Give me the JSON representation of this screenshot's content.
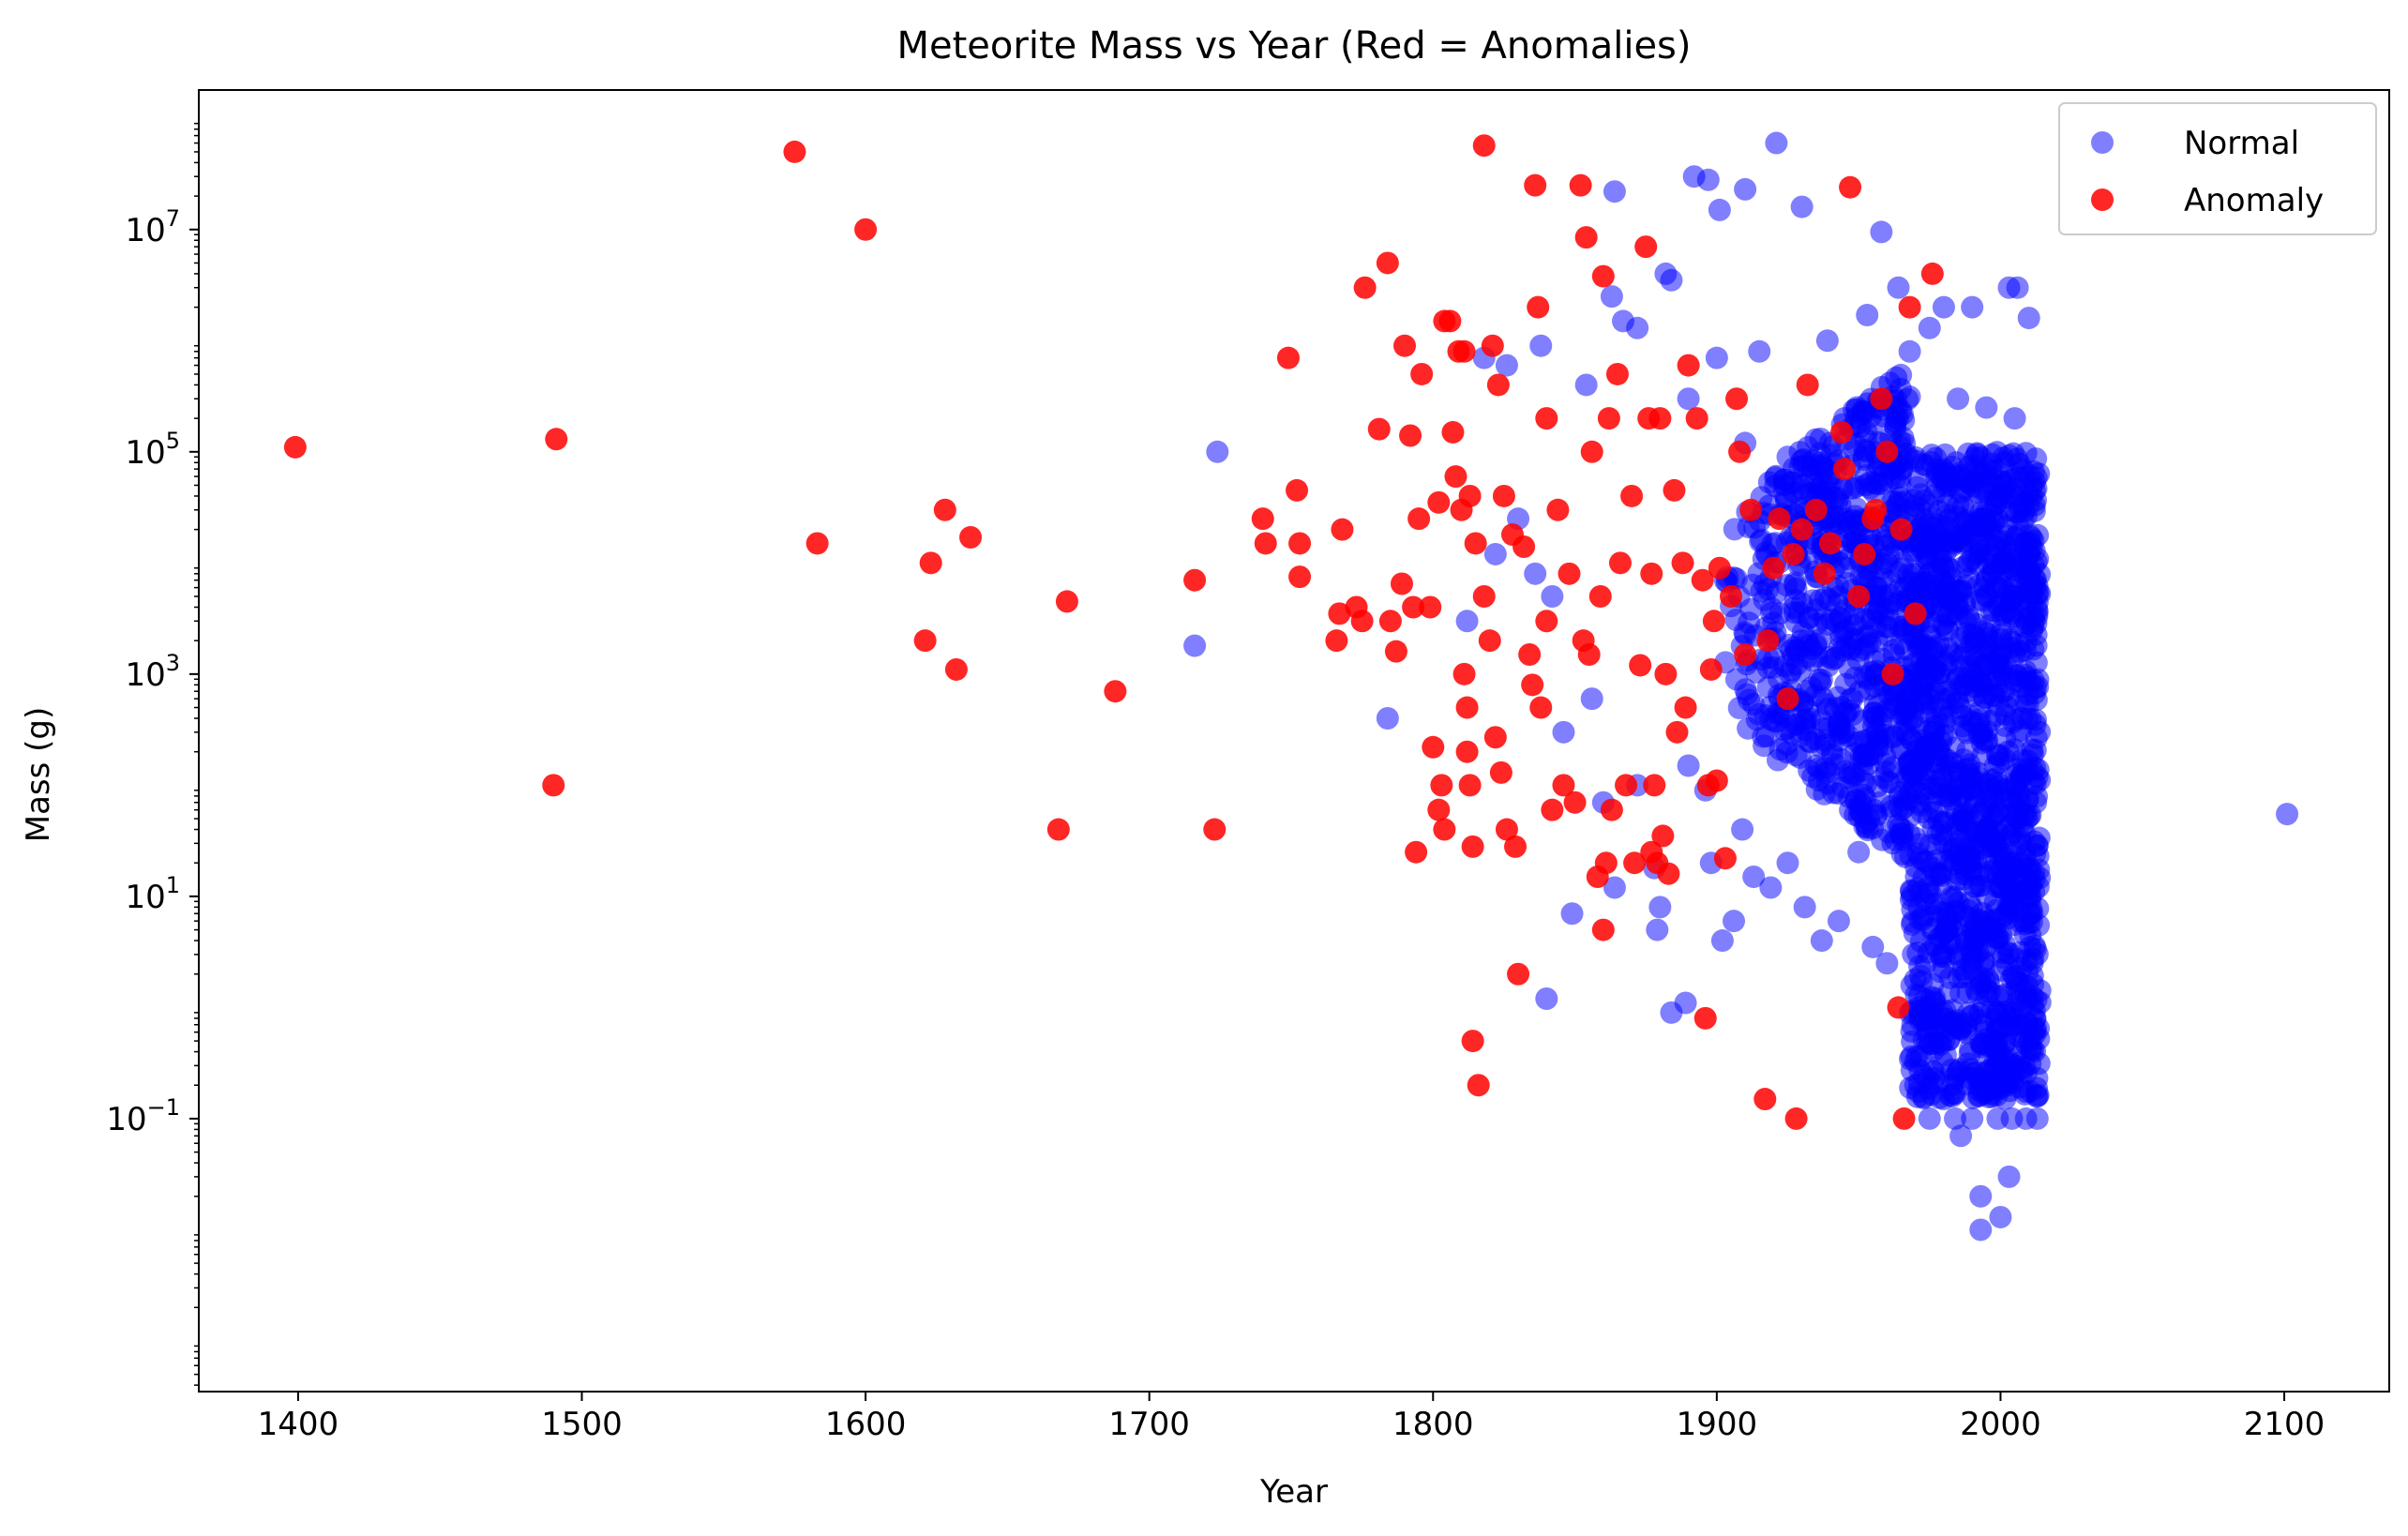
{
  "chart_data": {
    "type": "scatter",
    "title": "Meteorite Mass vs Year (Red = Anomalies)",
    "xlabel": "Year",
    "ylabel": "Mass (g)",
    "xlim": [
      1365,
      2137
    ],
    "ylim": [
      0.00035,
      180000000
    ],
    "yscale": "log",
    "x_ticks": [
      1400,
      1500,
      1600,
      1700,
      1800,
      1900,
      2000,
      2100
    ],
    "y_ticks": [
      {
        "value": 0.1,
        "base": "10",
        "exp": "−1"
      },
      {
        "value": 10,
        "base": "10",
        "exp": "1"
      },
      {
        "value": 1000,
        "base": "10",
        "exp": "3"
      },
      {
        "value": 100000,
        "base": "10",
        "exp": "5"
      },
      {
        "value": 10000000,
        "base": "10",
        "exp": "7"
      }
    ],
    "grid": false,
    "legend_position": "top-right",
    "series": [
      {
        "name": "Normal",
        "color": "#0000ff",
        "opacity": 0.5,
        "dense_region": {
          "x": [
            1968,
            2014
          ],
          "y": [
            0.15,
            100000
          ]
        },
        "dense_region_mid": {
          "x": [
            1900,
            1968
          ],
          "y": [
            10,
            300000
          ]
        },
        "points": [
          [
            1716,
            1800
          ],
          [
            1724,
            100000
          ],
          [
            1784,
            400
          ],
          [
            1840,
            1.2
          ],
          [
            1849,
            7
          ],
          [
            1860,
            70
          ],
          [
            1863,
            2500000
          ],
          [
            1864,
            22000000
          ],
          [
            1867,
            1500000
          ],
          [
            1872,
            1300000
          ],
          [
            1878,
            18
          ],
          [
            1879,
            5
          ],
          [
            1882,
            4000000
          ],
          [
            1884,
            3500000
          ],
          [
            1884,
            0.9
          ],
          [
            1889,
            1.1
          ],
          [
            1892,
            30000000
          ],
          [
            1897,
            28000000
          ],
          [
            1901,
            15000000
          ],
          [
            1910,
            23000000
          ],
          [
            1921,
            60000000
          ],
          [
            1930,
            16000000
          ],
          [
            1958,
            9500000
          ],
          [
            1964,
            3000000
          ],
          [
            1980,
            2000000
          ],
          [
            1986,
            0.07
          ],
          [
            1990,
            2000000
          ],
          [
            1993,
            0.02
          ],
          [
            1993,
            0.01
          ],
          [
            2000,
            0.013
          ],
          [
            2003,
            3000000
          ],
          [
            2006,
            3000000
          ],
          [
            2003,
            0.03
          ],
          [
            2010,
            1600000
          ],
          [
            2101,
            55
          ],
          [
            1818,
            700000
          ],
          [
            1826,
            600000
          ],
          [
            1838,
            900000
          ],
          [
            1854,
            400000
          ],
          [
            1900,
            700000
          ],
          [
            1915,
            800000
          ],
          [
            1939,
            1000000
          ],
          [
            1953,
            1700000
          ],
          [
            1968,
            800000
          ],
          [
            1975,
            1300000
          ],
          [
            1898,
            20
          ],
          [
            1902,
            4
          ],
          [
            1906,
            6
          ],
          [
            1913,
            15
          ],
          [
            1919,
            12
          ],
          [
            1925,
            20
          ],
          [
            1931,
            8
          ],
          [
            1937,
            4
          ],
          [
            1943,
            6
          ],
          [
            1950,
            25
          ],
          [
            1955,
            3.5
          ],
          [
            1960,
            2.5
          ],
          [
            1909,
            40
          ],
          [
            1935,
            150
          ],
          [
            1947,
            60
          ],
          [
            1962,
            30
          ],
          [
            1890,
            150
          ],
          [
            1896,
            90
          ],
          [
            1864,
            12
          ],
          [
            1872,
            100
          ],
          [
            1880,
            8
          ],
          [
            1856,
            600
          ],
          [
            1846,
            300
          ],
          [
            1830,
            25000
          ],
          [
            1836,
            8000
          ],
          [
            1842,
            5000
          ],
          [
            1822,
            12000
          ],
          [
            1812,
            3000
          ],
          [
            1890,
            300000
          ],
          [
            1910,
            120000
          ],
          [
            1925,
            90000
          ],
          [
            1945,
            200000
          ],
          [
            1960,
            100000
          ],
          [
            1985,
            300000
          ],
          [
            1995,
            250000
          ],
          [
            2005,
            200000
          ],
          [
            1975,
            0.1
          ],
          [
            1984,
            0.1
          ],
          [
            1990,
            0.1
          ],
          [
            1999,
            0.1
          ],
          [
            2004,
            0.1
          ],
          [
            2009,
            0.1
          ],
          [
            2013,
            0.1
          ],
          [
            1970,
            0.2
          ],
          [
            1980,
            0.15
          ]
        ]
      },
      {
        "name": "Anomaly",
        "color": "#ff0000",
        "opacity": 0.85,
        "points": [
          [
            1399,
            110000
          ],
          [
            1490,
            100
          ],
          [
            1491,
            130000
          ],
          [
            1575,
            50000000
          ],
          [
            1583,
            15000
          ],
          [
            1600,
            10000000
          ],
          [
            1621,
            2000
          ],
          [
            1623,
            10000
          ],
          [
            1628,
            30000
          ],
          [
            1632,
            1100
          ],
          [
            1637,
            17000
          ],
          [
            1668,
            40
          ],
          [
            1671,
            4500
          ],
          [
            1688,
            700
          ],
          [
            1716,
            7000
          ],
          [
            1723,
            40
          ],
          [
            1740,
            25000
          ],
          [
            1741,
            15000
          ],
          [
            1749,
            700000
          ],
          [
            1752,
            45000
          ],
          [
            1753,
            15000
          ],
          [
            1753,
            7500
          ],
          [
            1766,
            2000
          ],
          [
            1767,
            3500
          ],
          [
            1768,
            20000
          ],
          [
            1773,
            4000
          ],
          [
            1775,
            3000
          ],
          [
            1776,
            3000000
          ],
          [
            1781,
            160000
          ],
          [
            1784,
            5000000
          ],
          [
            1785,
            3000
          ],
          [
            1787,
            1600
          ],
          [
            1789,
            6500
          ],
          [
            1790,
            900000
          ],
          [
            1792,
            140000
          ],
          [
            1793,
            4000
          ],
          [
            1794,
            25
          ],
          [
            1795,
            25000
          ],
          [
            1796,
            500000
          ],
          [
            1799,
            4000
          ],
          [
            1800,
            220
          ],
          [
            1802,
            35000
          ],
          [
            1802,
            60
          ],
          [
            1803,
            100
          ],
          [
            1804,
            40
          ],
          [
            1804,
            1500000
          ],
          [
            1806,
            1500000
          ],
          [
            1807,
            150000
          ],
          [
            1808,
            60000
          ],
          [
            1809,
            800000
          ],
          [
            1810,
            30000
          ],
          [
            1811,
            800000
          ],
          [
            1811,
            1000
          ],
          [
            1812,
            500
          ],
          [
            1812,
            200
          ],
          [
            1813,
            100
          ],
          [
            1813,
            40000
          ],
          [
            1814,
            0.5
          ],
          [
            1814,
            28
          ],
          [
            1815,
            15000
          ],
          [
            1816,
            0.2
          ],
          [
            1818,
            57000000
          ],
          [
            1818,
            5000
          ],
          [
            1820,
            2000
          ],
          [
            1821,
            900000
          ],
          [
            1822,
            270
          ],
          [
            1823,
            400000
          ],
          [
            1824,
            130
          ],
          [
            1825,
            40000
          ],
          [
            1826,
            40
          ],
          [
            1828,
            18000
          ],
          [
            1829,
            28
          ],
          [
            1830,
            2
          ],
          [
            1832,
            14000
          ],
          [
            1834,
            1500
          ],
          [
            1835,
            800
          ],
          [
            1836,
            25000000
          ],
          [
            1837,
            2000000
          ],
          [
            1838,
            500
          ],
          [
            1840,
            200000
          ],
          [
            1840,
            3000
          ],
          [
            1842,
            60
          ],
          [
            1844,
            30000
          ],
          [
            1846,
            100
          ],
          [
            1848,
            8000
          ],
          [
            1850,
            70
          ],
          [
            1852,
            25000000
          ],
          [
            1853,
            2000
          ],
          [
            1854,
            8500000
          ],
          [
            1855,
            1500
          ],
          [
            1856,
            100000
          ],
          [
            1858,
            15
          ],
          [
            1859,
            5000
          ],
          [
            1860,
            5
          ],
          [
            1860,
            3800000
          ],
          [
            1861,
            20
          ],
          [
            1862,
            200000
          ],
          [
            1863,
            60
          ],
          [
            1865,
            500000
          ],
          [
            1866,
            10000
          ],
          [
            1868,
            100
          ],
          [
            1870,
            40000
          ],
          [
            1871,
            20
          ],
          [
            1873,
            1200
          ],
          [
            1875,
            7000000
          ],
          [
            1876,
            200000
          ],
          [
            1877,
            25
          ],
          [
            1877,
            8000
          ],
          [
            1878,
            100
          ],
          [
            1879,
            20
          ],
          [
            1880,
            200000
          ],
          [
            1881,
            35
          ],
          [
            1882,
            1000
          ],
          [
            1883,
            16
          ],
          [
            1885,
            45000
          ],
          [
            1886,
            300
          ],
          [
            1888,
            10000
          ],
          [
            1889,
            500
          ],
          [
            1890,
            600000
          ],
          [
            1893,
            200000
          ],
          [
            1895,
            7000
          ],
          [
            1896,
            0.8
          ],
          [
            1897,
            100
          ],
          [
            1898,
            1100
          ],
          [
            1899,
            3000
          ],
          [
            1900,
            110
          ],
          [
            1901,
            9000
          ],
          [
            1903,
            22
          ],
          [
            1905,
            5000
          ],
          [
            1907,
            300000
          ],
          [
            1908,
            100000
          ],
          [
            1910,
            1500
          ],
          [
            1912,
            30000
          ],
          [
            1917,
            0.15
          ],
          [
            1918,
            2000
          ],
          [
            1920,
            9000
          ],
          [
            1922,
            25000
          ],
          [
            1925,
            600
          ],
          [
            1927,
            12000
          ],
          [
            1928,
            0.1
          ],
          [
            1930,
            20000
          ],
          [
            1932,
            400000
          ],
          [
            1935,
            30000
          ],
          [
            1940,
            15000
          ],
          [
            1945,
            70000
          ],
          [
            1947,
            24000000
          ],
          [
            1950,
            5000
          ],
          [
            1955,
            25000
          ],
          [
            1958,
            300000
          ],
          [
            1960,
            100000
          ],
          [
            1962,
            1000
          ],
          [
            1964,
            1
          ],
          [
            1965,
            20000
          ],
          [
            1966,
            0.1
          ],
          [
            1968,
            2000000
          ],
          [
            1970,
            3500
          ],
          [
            1976,
            4000000
          ],
          [
            1956,
            30000
          ],
          [
            1938,
            8000
          ],
          [
            1944,
            150000
          ],
          [
            1952,
            12000
          ]
        ]
      }
    ]
  },
  "legend": [
    {
      "label": "Normal",
      "color": "#0000ff"
    },
    {
      "label": "Anomaly",
      "color": "#ff0000"
    }
  ]
}
